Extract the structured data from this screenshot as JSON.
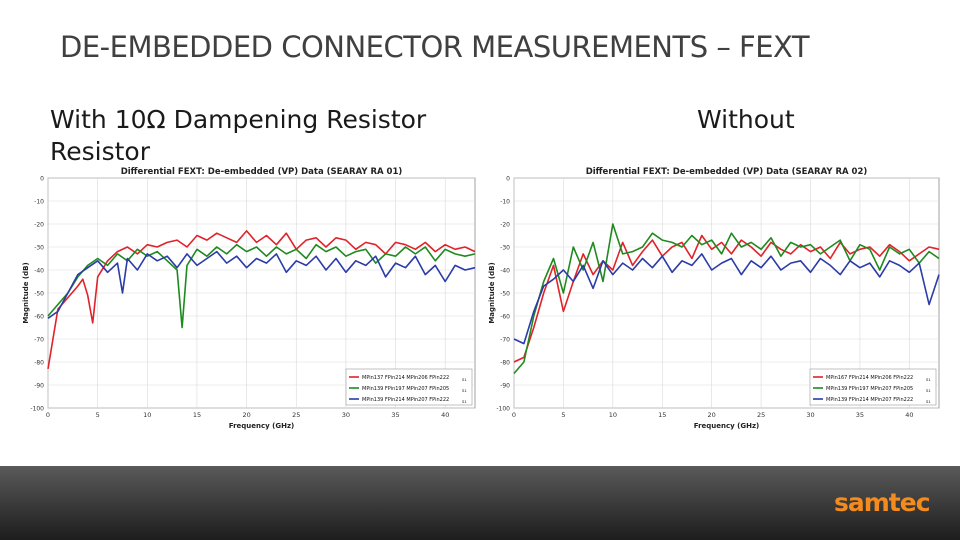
{
  "slide": {
    "title": "DE-EMBEDDED CONNECTOR MEASUREMENTS – FEXT",
    "left_subtitle": "With 10Ω Dampening Resistor Resistor",
    "right_subtitle": "Without"
  },
  "logo": {
    "text": "samtec"
  },
  "colors": {
    "red": "#e0222a",
    "green": "#1f8a1f",
    "blue": "#2b3ba8",
    "logo_orange": "#f48b1f"
  },
  "chart_data": [
    {
      "type": "line",
      "title": "Differential FEXT: De-embedded (VP) Data (SEARAY RA 01)",
      "xlabel": "Frequency (GHz)",
      "ylabel": "Magnitude (dB)",
      "xlim": [
        0,
        43
      ],
      "ylim": [
        -100,
        0
      ],
      "xticks": [
        0,
        5,
        10,
        15,
        20,
        25,
        30,
        35,
        40
      ],
      "yticks": [
        0,
        -10,
        -20,
        -30,
        -40,
        -50,
        -60,
        -70,
        -80,
        -90,
        -100
      ],
      "grid": true,
      "legend_position": "bottom-right",
      "series": [
        {
          "name": "MPin137 FPin214 MPin206 FPin222",
          "suffix": "S1",
          "color": "#e0222a",
          "x": [
            0,
            1,
            2,
            3,
            3.5,
            4,
            4.5,
            5,
            6,
            7,
            8,
            9,
            10,
            11,
            12,
            13,
            14,
            15,
            16,
            17,
            18,
            19,
            20,
            21,
            22,
            23,
            24,
            25,
            26,
            27,
            28,
            29,
            30,
            31,
            32,
            33,
            34,
            35,
            36,
            37,
            38,
            39,
            40,
            41,
            42,
            43
          ],
          "y": [
            -83,
            -57,
            -52,
            -47,
            -44,
            -51,
            -63,
            -43,
            -36,
            -32,
            -30,
            -33,
            -29,
            -30,
            -28,
            -27,
            -30,
            -25,
            -27,
            -24,
            -26,
            -28,
            -23,
            -28,
            -25,
            -29,
            -24,
            -31,
            -27,
            -26,
            -30,
            -26,
            -27,
            -31,
            -28,
            -29,
            -33,
            -28,
            -29,
            -31,
            -28,
            -32,
            -29,
            -31,
            -30,
            -32
          ]
        },
        {
          "name": "MPin139 FPin197 MPin207 FPin205",
          "suffix": "S1",
          "color": "#1f8a1f",
          "x": [
            0,
            1,
            2,
            3,
            4,
            5,
            6,
            7,
            8,
            9,
            10,
            11,
            12,
            13,
            13.5,
            14,
            15,
            16,
            17,
            18,
            19,
            20,
            21,
            22,
            23,
            24,
            25,
            26,
            27,
            28,
            29,
            30,
            31,
            32,
            33,
            34,
            35,
            36,
            37,
            38,
            39,
            40,
            41,
            42,
            43
          ],
          "y": [
            -60,
            -55,
            -50,
            -43,
            -38,
            -35,
            -38,
            -33,
            -36,
            -31,
            -34,
            -32,
            -36,
            -40,
            -65,
            -38,
            -31,
            -34,
            -30,
            -33,
            -29,
            -32,
            -30,
            -34,
            -30,
            -33,
            -31,
            -35,
            -29,
            -32,
            -30,
            -34,
            -32,
            -31,
            -37,
            -33,
            -34,
            -30,
            -33,
            -30,
            -36,
            -31,
            -33,
            -34,
            -33
          ]
        },
        {
          "name": "MPin139 FPin214 MPin207 FPin222",
          "suffix": "S1",
          "color": "#2b3ba8",
          "x": [
            0,
            1,
            2,
            3,
            4,
            5,
            6,
            7,
            7.5,
            8,
            9,
            10,
            11,
            12,
            13,
            14,
            15,
            16,
            17,
            18,
            19,
            20,
            21,
            22,
            23,
            24,
            25,
            26,
            27,
            28,
            29,
            30,
            31,
            32,
            33,
            34,
            35,
            36,
            37,
            38,
            39,
            40,
            41,
            42,
            43
          ],
          "y": [
            -61,
            -58,
            -50,
            -42,
            -39,
            -36,
            -41,
            -37,
            -50,
            -35,
            -40,
            -33,
            -36,
            -34,
            -39,
            -33,
            -38,
            -35,
            -32,
            -37,
            -34,
            -39,
            -35,
            -37,
            -33,
            -41,
            -36,
            -38,
            -34,
            -40,
            -35,
            -41,
            -36,
            -38,
            -34,
            -43,
            -37,
            -39,
            -34,
            -42,
            -38,
            -45,
            -38,
            -40,
            -39
          ]
        }
      ]
    },
    {
      "type": "line",
      "title": "Differential FEXT: De-embedded (VP) Data (SEARAY RA 02)",
      "xlabel": "Frequency (GHz)",
      "ylabel": "Magnitude (dB)",
      "xlim": [
        0,
        43
      ],
      "ylim": [
        -100,
        0
      ],
      "xticks": [
        0,
        5,
        10,
        15,
        20,
        25,
        30,
        35,
        40
      ],
      "yticks": [
        0,
        -10,
        -20,
        -30,
        -40,
        -50,
        -60,
        -70,
        -80,
        -90,
        -100
      ],
      "grid": true,
      "legend_position": "bottom-right",
      "series": [
        {
          "name": "MPin167 FPin214 MPin206 FPin222",
          "suffix": "S1",
          "color": "#e0222a",
          "x": [
            0,
            1,
            2,
            3,
            4,
            5,
            6,
            7,
            8,
            9,
            10,
            11,
            12,
            13,
            14,
            15,
            16,
            17,
            18,
            19,
            20,
            21,
            22,
            23,
            24,
            25,
            26,
            27,
            28,
            29,
            30,
            31,
            32,
            33,
            34,
            35,
            36,
            37,
            38,
            39,
            40,
            41,
            42,
            43
          ],
          "y": [
            -80,
            -78,
            -65,
            -50,
            -38,
            -58,
            -45,
            -33,
            -42,
            -36,
            -40,
            -28,
            -38,
            -32,
            -27,
            -34,
            -30,
            -28,
            -35,
            -25,
            -31,
            -28,
            -33,
            -27,
            -30,
            -34,
            -28,
            -31,
            -33,
            -29,
            -32,
            -30,
            -35,
            -28,
            -33,
            -31,
            -30,
            -34,
            -29,
            -32,
            -36,
            -33,
            -30,
            -31
          ]
        },
        {
          "name": "MPin139 FPin197 MPin207 FPin205",
          "suffix": "S1",
          "color": "#1f8a1f",
          "x": [
            0,
            1,
            2,
            3,
            4,
            5,
            6,
            7,
            8,
            9,
            10,
            11,
            12,
            13,
            14,
            15,
            16,
            17,
            18,
            19,
            20,
            21,
            22,
            23,
            24,
            25,
            26,
            27,
            28,
            29,
            30,
            31,
            32,
            33,
            34,
            35,
            36,
            37,
            38,
            39,
            40,
            41,
            42,
            43
          ],
          "y": [
            -85,
            -80,
            -60,
            -45,
            -35,
            -50,
            -30,
            -40,
            -28,
            -45,
            -20,
            -33,
            -32,
            -30,
            -24,
            -27,
            -28,
            -30,
            -25,
            -29,
            -27,
            -33,
            -24,
            -30,
            -28,
            -31,
            -26,
            -34,
            -28,
            -30,
            -29,
            -33,
            -30,
            -27,
            -36,
            -29,
            -31,
            -40,
            -30,
            -33,
            -31,
            -37,
            -32,
            -35
          ]
        },
        {
          "name": "MPin139 FPin214 MPin207 FPin222",
          "suffix": "S1",
          "color": "#2b3ba8",
          "x": [
            0,
            1,
            2,
            3,
            4,
            5,
            6,
            7,
            8,
            9,
            10,
            11,
            12,
            13,
            14,
            15,
            16,
            17,
            18,
            19,
            20,
            21,
            22,
            23,
            24,
            25,
            26,
            27,
            28,
            29,
            30,
            31,
            32,
            33,
            34,
            35,
            36,
            37,
            38,
            39,
            40,
            41,
            42,
            43
          ],
          "y": [
            -70,
            -72,
            -58,
            -47,
            -44,
            -40,
            -45,
            -38,
            -48,
            -36,
            -42,
            -37,
            -40,
            -35,
            -39,
            -34,
            -41,
            -36,
            -38,
            -33,
            -40,
            -37,
            -35,
            -42,
            -36,
            -39,
            -34,
            -40,
            -37,
            -36,
            -41,
            -35,
            -38,
            -42,
            -36,
            -39,
            -37,
            -43,
            -36,
            -38,
            -41,
            -37,
            -55,
            -42
          ]
        }
      ]
    }
  ]
}
